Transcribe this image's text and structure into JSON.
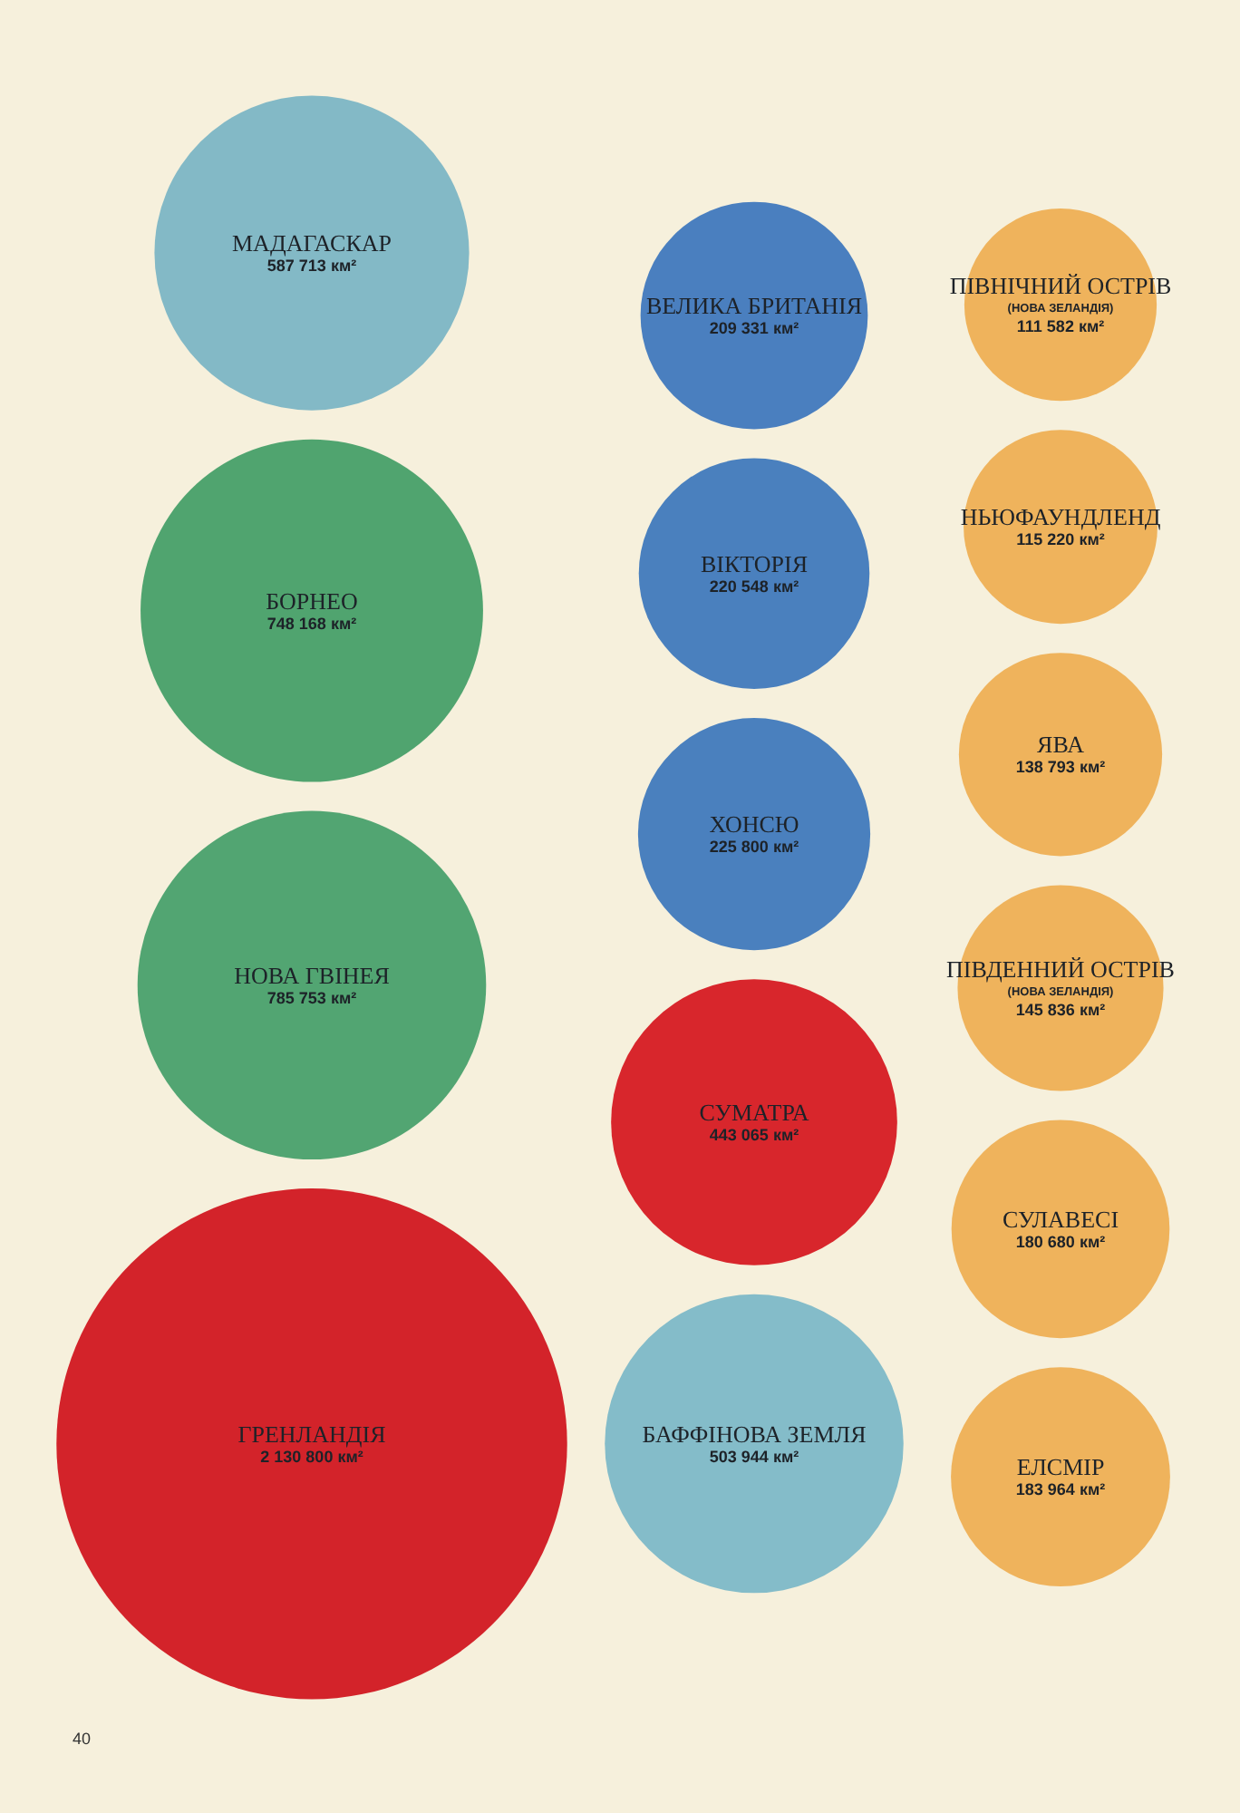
{
  "chart_data": {
    "type": "other",
    "categories": [
      "МАДАГАСКАР",
      "БОРНЕО",
      "НОВА ГВІНЕЯ",
      "ГРЕНЛАНДІЯ",
      "ВЕЛИКА БРИТАНІЯ",
      "ВІКТОРІЯ",
      "ХОНСЮ",
      "СУМАТРА",
      "БАФФІНОВА ЗЕМЛЯ",
      "ПІВНІЧНИЙ ОСТРІВ\n(НОВА ЗЕЛАНДІЯ)",
      "НЬЮФАУНДЛЕНД",
      "ЯВА",
      "ПІВДЕННИЙ ОСТРІВ\n(НОВА ЗЕЛАНДІЯ)",
      "СУЛАВЕСІ",
      "ЕЛСМІР"
    ],
    "values": [
      587713,
      748168,
      785753,
      2130800,
      209331,
      220548,
      225800,
      443065,
      503944,
      111582,
      115220,
      138793,
      145836,
      180680,
      183964
    ],
    "value_labels": [
      "587 713 км²",
      "748 168 км²",
      "785 753 км²",
      "2 130 800 км²",
      "209 331 км²",
      "220 548 км²",
      "225 800 км²",
      "443 065 км²",
      "503 944 км²",
      "111 582 км²",
      "115 220 км²",
      "138 793 км²",
      "145 836 км²",
      "180 680 км²",
      "183 964 км²"
    ],
    "colors": [
      "#83b9c6",
      "#50a46f",
      "#52a572",
      "#d3232a",
      "#4a7fbf",
      "#4a80be",
      "#4a80be",
      "#d8262c",
      "#84bcc9",
      "#efb35c",
      "#efb35c",
      "#efb35c",
      "#efb35c",
      "#efb35c",
      "#efb35c"
    ],
    "annotations": [
      "40"
    ]
  }
}
